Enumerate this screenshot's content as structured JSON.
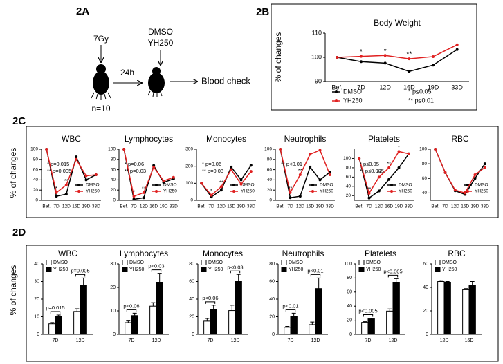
{
  "panels": [
    "2A",
    "2B",
    "2C",
    "2D"
  ],
  "diagram": {
    "dose": "7Gy",
    "interval": "24h",
    "treatment": [
      "DMSO",
      "YH250"
    ],
    "outcome": "Blood check",
    "count": "n=10"
  },
  "chart_data": [
    {
      "type": "line",
      "title": "Body Weight",
      "y_label": "% of changes",
      "categories": [
        "Bef.",
        "7D",
        "12D",
        "16D",
        "19D",
        "33D"
      ],
      "series": [
        {
          "name": "DMSO",
          "color": "#000000",
          "values": [
            100,
            98.2,
            97.6,
            94.2,
            96.8,
            103.2
          ]
        },
        {
          "name": "YH250",
          "color": "#e02020",
          "values": [
            100,
            100.4,
            100.8,
            99.4,
            100.3,
            105.2
          ]
        }
      ],
      "ylim": [
        90,
        110
      ],
      "yticks": [
        90,
        100,
        110
      ],
      "annotations": [
        "*",
        "*",
        "**"
      ],
      "notes": [
        "* p≤0.05",
        "** p≤0.01"
      ]
    },
    {
      "type": "line",
      "title": "WBC",
      "y_label": "% of changes",
      "categories": [
        "Bef.",
        "7D",
        "12D",
        "16D",
        "19D",
        "33D"
      ],
      "series": [
        {
          "name": "DMSO",
          "color": "#000000",
          "values": [
            100,
            8,
            12,
            85,
            40,
            50
          ]
        },
        {
          "name": "YH250",
          "color": "#e02020",
          "values": [
            100,
            15,
            30,
            80,
            48,
            50
          ]
        }
      ],
      "ylim": [
        0,
        100
      ],
      "yticks": [
        0,
        20,
        40,
        60,
        80,
        100
      ],
      "annotations": [
        "*",
        "**"
      ],
      "notes": [
        "* p=0.015",
        "** p=0.005"
      ]
    },
    {
      "type": "line",
      "title": "Lymphocytes",
      "categories": [
        "Bef.",
        "7D",
        "12D",
        "16D",
        "19D",
        "33D"
      ],
      "series": [
        {
          "name": "DMSO",
          "color": "#000000",
          "values": [
            100,
            2,
            5,
            68,
            35,
            42
          ]
        },
        {
          "name": "YH250",
          "color": "#e02020",
          "values": [
            100,
            8,
            15,
            65,
            38,
            45
          ]
        }
      ],
      "ylim": [
        0,
        100
      ],
      "yticks": [
        0,
        20,
        40,
        60,
        80,
        100
      ],
      "annotations": [
        "*",
        "**"
      ],
      "notes": [
        "* p=0.06",
        "** p=0.03"
      ]
    },
    {
      "type": "line",
      "title": "Monocytes",
      "categories": [
        "Bef.",
        "7D",
        "12D",
        "16D",
        "19D",
        "33D"
      ],
      "series": [
        {
          "name": "DMSO",
          "color": "#000000",
          "values": [
            100,
            20,
            60,
            195,
            120,
            205
          ]
        },
        {
          "name": "YH250",
          "color": "#e02020",
          "values": [
            100,
            30,
            80,
            180,
            95,
            170
          ]
        }
      ],
      "ylim": [
        0,
        300
      ],
      "yticks": [
        0,
        100,
        200,
        300
      ],
      "annotations": [
        "*",
        "**"
      ],
      "notes": [
        "* p=0.06",
        "** p=0.03"
      ]
    },
    {
      "type": "line",
      "title": "Neutrophils",
      "categories": [
        "Bef.",
        "7D",
        "12D",
        "16D",
        "19D",
        "33D"
      ],
      "series": [
        {
          "name": "DMSO",
          "color": "#000000",
          "values": [
            100,
            5,
            8,
            65,
            40,
            55
          ]
        },
        {
          "name": "YH250",
          "color": "#e02020",
          "values": [
            100,
            15,
            50,
            90,
            98,
            50
          ]
        }
      ],
      "ylim": [
        0,
        100
      ],
      "yticks": [
        0,
        20,
        40,
        60,
        80,
        100
      ],
      "annotations": [
        "**",
        "**"
      ],
      "notes": [
        "** p<0.01"
      ]
    },
    {
      "type": "line",
      "title": "Platelets",
      "categories": [
        "Bef.",
        "7D",
        "12D",
        "16D",
        "19D",
        "33D"
      ],
      "series": [
        {
          "name": "DMSO",
          "color": "#000000",
          "values": [
            100,
            15,
            30,
            55,
            80,
            110
          ]
        },
        {
          "name": "YH250",
          "color": "#e02020",
          "values": [
            100,
            25,
            60,
            80,
            115,
            110
          ]
        }
      ],
      "ylim": [
        10,
        120
      ],
      "yticks": [
        20,
        40,
        60,
        80,
        100
      ],
      "annotations": [
        "**",
        "**",
        "**",
        "*"
      ],
      "notes": [
        "* p≤0.05",
        "** p≤0.005"
      ]
    },
    {
      "type": "line",
      "title": "RBC",
      "categories": [
        "Bef.",
        "7D",
        "12D",
        "16D",
        "19D",
        "33D"
      ],
      "series": [
        {
          "name": "DMSO",
          "color": "#000000",
          "values": [
            100,
            68,
            43,
            38,
            60,
            80
          ]
        },
        {
          "name": "YH250",
          "color": "#e02020",
          "values": [
            100,
            68,
            44,
            40,
            65,
            75
          ]
        }
      ],
      "ylim": [
        30,
        100
      ],
      "yticks": [
        40,
        60,
        80,
        100
      ]
    },
    {
      "type": "bar",
      "title": "WBC",
      "y_label": "% of changes",
      "categories": [
        "7D",
        "12D"
      ],
      "series": [
        {
          "name": "DMSO",
          "color": "#ffffff",
          "values": [
            6,
            13
          ],
          "errors": [
            0.7,
            1.5
          ]
        },
        {
          "name": "YH250",
          "color": "#000000",
          "values": [
            10,
            28
          ],
          "errors": [
            1,
            4
          ]
        }
      ],
      "ylim": [
        0,
        40
      ],
      "yticks": [
        0,
        10,
        20,
        30,
        40
      ],
      "pvalues": [
        "p=0.015",
        "p=0.005"
      ]
    },
    {
      "type": "bar",
      "title": "Lymphocytes",
      "categories": [
        "7D",
        "12D"
      ],
      "series": [
        {
          "name": "DMSO",
          "color": "#ffffff",
          "values": [
            5,
            12
          ],
          "errors": [
            0.7,
            1.5
          ]
        },
        {
          "name": "YH250",
          "color": "#000000",
          "values": [
            8,
            22
          ],
          "errors": [
            1,
            4
          ]
        }
      ],
      "ylim": [
        0,
        30
      ],
      "yticks": [
        0,
        10,
        20,
        30
      ],
      "pvalues": [
        "p<0.06",
        "p<0.03"
      ]
    },
    {
      "type": "bar",
      "title": "Monocytes",
      "categories": [
        "7D",
        "12D"
      ],
      "series": [
        {
          "name": "DMSO",
          "color": "#ffffff",
          "values": [
            15,
            27
          ],
          "errors": [
            3,
            6
          ]
        },
        {
          "name": "YH250",
          "color": "#000000",
          "values": [
            28,
            60
          ],
          "errors": [
            5,
            8
          ]
        }
      ],
      "ylim": [
        0,
        80
      ],
      "yticks": [
        0,
        20,
        40,
        60,
        80
      ],
      "pvalues": [
        "p<0.06",
        "p<0.03"
      ]
    },
    {
      "type": "bar",
      "title": "Neutrophils",
      "categories": [
        "7D",
        "12D"
      ],
      "series": [
        {
          "name": "DMSO",
          "color": "#ffffff",
          "values": [
            8,
            11
          ],
          "errors": [
            1,
            3
          ]
        },
        {
          "name": "YH250",
          "color": "#000000",
          "values": [
            20,
            52
          ],
          "errors": [
            4,
            12
          ]
        }
      ],
      "ylim": [
        0,
        80
      ],
      "yticks": [
        0,
        20,
        40,
        60,
        80
      ],
      "pvalues": [
        "p<0.01",
        "p<0.01"
      ]
    },
    {
      "type": "bar",
      "title": "Platelets",
      "categories": [
        "7D",
        "12D"
      ],
      "series": [
        {
          "name": "DMSO",
          "color": "#ffffff",
          "values": [
            17,
            33
          ],
          "errors": [
            1,
            3
          ]
        },
        {
          "name": "YH250",
          "color": "#000000",
          "values": [
            22,
            74
          ],
          "errors": [
            1,
            5
          ]
        }
      ],
      "ylim": [
        0,
        100
      ],
      "yticks": [
        0,
        20,
        40,
        60,
        80,
        100
      ],
      "pvalues": [
        "p<0.005",
        "p<0.005"
      ]
    },
    {
      "type": "bar",
      "title": "RBC",
      "categories": [
        "12D",
        "16D"
      ],
      "series": [
        {
          "name": "DMSO",
          "color": "#ffffff",
          "values": [
            45,
            38
          ],
          "errors": [
            1,
            1
          ]
        },
        {
          "name": "YH250",
          "color": "#000000",
          "values": [
            44,
            42
          ],
          "errors": [
            1,
            3
          ]
        }
      ],
      "ylim": [
        0,
        60
      ],
      "yticks": [
        0,
        20,
        40,
        60
      ]
    }
  ]
}
